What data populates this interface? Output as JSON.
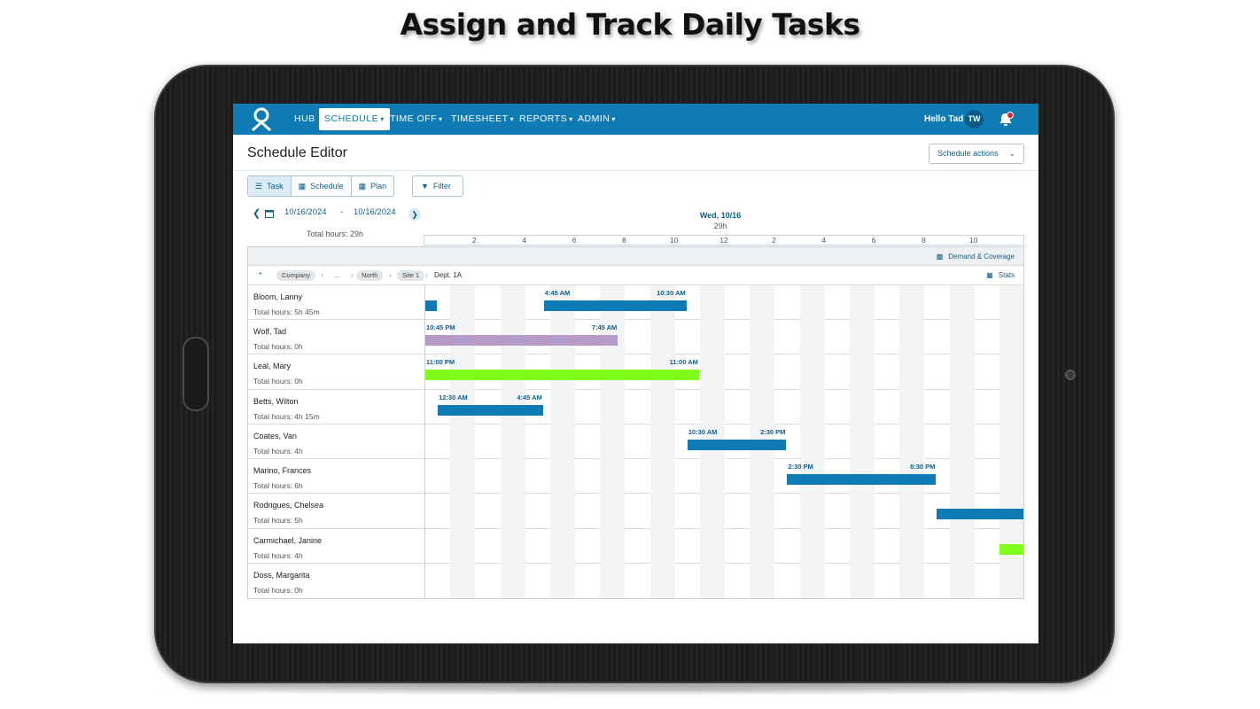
{
  "headline": "Assign and Track Daily Tasks",
  "colors": {
    "brand": "#0e7bb5",
    "shift_blue": "#0e7bb5",
    "shift_purple": "#b39ac8",
    "shift_green": "#7fff1a"
  },
  "nav": {
    "items": [
      {
        "label": "HUB",
        "caret": false
      },
      {
        "label": "SCHEDULE",
        "caret": true,
        "active": true
      },
      {
        "label": "TIME OFF",
        "caret": true
      },
      {
        "label": "TIMESHEET",
        "caret": true
      },
      {
        "label": "REPORTS",
        "caret": true
      },
      {
        "label": "ADMIN",
        "caret": true
      }
    ],
    "greeting": "Hello Tad",
    "avatar_initials": "TW",
    "icons": {
      "logo": "person-logo-icon",
      "notifications": "bell-icon"
    }
  },
  "page": {
    "title": "Schedule Editor",
    "actions_label": "Schedule actions"
  },
  "view_toggle": {
    "options": [
      {
        "label": "Task",
        "icon": "task-icon",
        "active": true
      },
      {
        "label": "Schedule",
        "icon": "grid-icon"
      },
      {
        "label": "Plan",
        "icon": "grid-icon"
      }
    ],
    "filter_label": "Filter"
  },
  "date_range": {
    "start": "10/16/2024",
    "separator": "-",
    "end": "10/16/2024",
    "total_hours": "Total hours: 29h"
  },
  "day": {
    "label": "Wed, 10/16",
    "hours": "29h",
    "ticks": [
      "2",
      "4",
      "6",
      "8",
      "10",
      "12",
      "2",
      "4",
      "6",
      "8",
      "10"
    ]
  },
  "grid_header": {
    "demand_label": "Demand & Coverage",
    "breadcrumb": [
      "Company",
      "...",
      "North",
      "Site 1"
    ],
    "breadcrumb_current": "Dept. 1A",
    "stats_label": "Stats"
  },
  "employees": [
    {
      "name": "Bloom, Lanny",
      "hours": "Total hours: 5h 45m",
      "shifts": [
        {
          "start_h": 0,
          "end_h": 0.5,
          "color": "blue"
        },
        {
          "start_h": 4.75,
          "end_h": 10.5,
          "color": "blue",
          "start_label": "4:45 AM",
          "end_label": "10:30 AM"
        }
      ]
    },
    {
      "name": "Wolf, Tad",
      "hours": "Total hours: 0h",
      "shifts": [
        {
          "start_h": 0,
          "end_h": 7.75,
          "color": "purple",
          "start_label": "10:45 PM",
          "end_label": "7:45 AM"
        }
      ]
    },
    {
      "name": "Leal, Mary",
      "hours": "Total hours: 0h",
      "shifts": [
        {
          "start_h": 0,
          "end_h": 11,
          "color": "green",
          "start_label": "11:00 PM",
          "end_label": "11:00 AM"
        }
      ]
    },
    {
      "name": "Betts, Wilton",
      "hours": "Total hours: 4h 15m",
      "shifts": [
        {
          "start_h": 0.5,
          "end_h": 4.75,
          "color": "blue",
          "start_label": "12:30 AM",
          "end_label": "4:45 AM"
        }
      ]
    },
    {
      "name": "Coates, Van",
      "hours": "Total hours: 4h",
      "shifts": [
        {
          "start_h": 10.5,
          "end_h": 14.5,
          "color": "blue",
          "start_label": "10:30 AM",
          "end_label": "2:30 PM"
        }
      ]
    },
    {
      "name": "Marino, Frances",
      "hours": "Total hours: 6h",
      "shifts": [
        {
          "start_h": 14.5,
          "end_h": 20.5,
          "color": "blue",
          "start_label": "2:30 PM",
          "end_label": "8:30 PM"
        }
      ]
    },
    {
      "name": "Rodrigues, Chelsea",
      "hours": "Total hours: 5h",
      "shifts": [
        {
          "start_h": 20.5,
          "end_h": 24,
          "color": "blue"
        }
      ]
    },
    {
      "name": "Carmichael, Janine",
      "hours": "Total hours: 4h",
      "shifts": [
        {
          "start_h": 23,
          "end_h": 24,
          "color": "green"
        }
      ]
    },
    {
      "name": "Doss, Margarita",
      "hours": "Total hours: 0h",
      "shifts": []
    }
  ]
}
